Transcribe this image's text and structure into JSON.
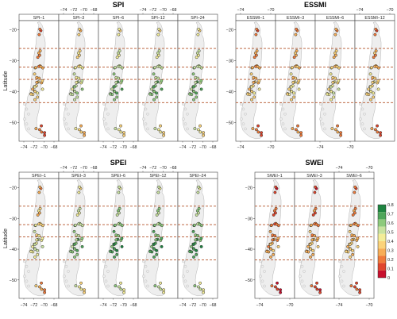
{
  "colors": {
    "dash": "#b4532a",
    "map_fill": "#eeeeee",
    "map_stroke": "#b5b5b5",
    "panel_border": "#444444",
    "strip_fill": "#ffffff",
    "point_stroke": "#222222",
    "colorbar": [
      "#c8102e",
      "#e0452c",
      "#f07a3a",
      "#f7ad56",
      "#fbd37a",
      "#f3ed98",
      "#c9e3a0",
      "#8dca7c",
      "#4ea65a",
      "#1e8440"
    ]
  },
  "chart_data": [
    {
      "type": "scatter",
      "title": "SPI",
      "ylabel": "Latitude",
      "panels": [
        "SPI–1",
        "SPI–3",
        "SPI–6",
        "SPI–12",
        "SPI–24"
      ],
      "panel_level": [
        0.3,
        0.45,
        0.55,
        0.55,
        0.55
      ],
      "x_ticks_bottom": [
        "−74",
        "−72",
        "−70",
        "−68"
      ],
      "x_ticks_top": [
        "−74",
        "−72",
        "−70",
        "−68"
      ],
      "top_tick_panels": [
        1,
        3
      ],
      "bottom_tick_panels": [
        0,
        2,
        4
      ],
      "y_ticks": [
        -20,
        -30,
        -40,
        -50
      ],
      "ylim": [
        -56,
        -17
      ],
      "dashed_lat": [
        -26,
        -32,
        -36,
        -43.5
      ],
      "region": "Chile"
    },
    {
      "type": "scatter",
      "title": "ESSMI",
      "ylabel": "",
      "panels": [
        "ESSMI–1",
        "ESSMI–3",
        "ESSMI–6",
        "ESSMI–12"
      ],
      "panel_level": [
        0.3,
        0.35,
        0.38,
        0.32
      ],
      "x_ticks_bottom": [
        "−74",
        "−70"
      ],
      "x_ticks_top": [
        "−74",
        "−70"
      ],
      "top_tick_panels": [
        0,
        3
      ],
      "bottom_tick_panels": [
        0,
        2
      ],
      "y_ticks": [
        -20,
        -30,
        -40,
        -50
      ],
      "ylim": [
        -56,
        -17
      ],
      "dashed_lat": [
        -26,
        -32,
        -36,
        -43.5
      ],
      "region": "Chile"
    },
    {
      "type": "scatter",
      "title": "SPEI",
      "ylabel": "Latitude",
      "panels": [
        "SPEI–1",
        "SPEI–3",
        "SPEI–6",
        "SPEI–12",
        "SPEI–24"
      ],
      "panel_level": [
        0.4,
        0.55,
        0.62,
        0.62,
        0.62
      ],
      "x_ticks_bottom": [
        "−74",
        "−72",
        "−70",
        "−68"
      ],
      "x_ticks_top": [
        "−74",
        "−72",
        "−70",
        "−68"
      ],
      "top_tick_panels": [
        1,
        3
      ],
      "bottom_tick_panels": [
        0,
        2,
        4
      ],
      "y_ticks": [
        -20,
        -30,
        -40,
        -50
      ],
      "ylim": [
        -56,
        -17
      ],
      "dashed_lat": [
        -26,
        -32,
        -36,
        -43.5
      ],
      "region": "Chile"
    },
    {
      "type": "scatter",
      "title": "SWEI",
      "ylabel": "",
      "panels": [
        "SWEI–1",
        "SWEI–3",
        "SWEI–6"
      ],
      "panel_level": [
        0.22,
        0.25,
        0.28
      ],
      "x_ticks_bottom": [
        "−74",
        "−70"
      ],
      "x_ticks_top": [
        "−74",
        "−70"
      ],
      "top_tick_panels": [
        2
      ],
      "bottom_tick_panels": [
        0,
        2
      ],
      "y_ticks": [
        -20,
        -30,
        -40,
        -50
      ],
      "ylim": [
        -56,
        -17
      ],
      "dashed_lat": [
        -26,
        -32,
        -36,
        -43.5
      ],
      "region": "Chile"
    }
  ],
  "colorbar": {
    "ticks": [
      "0.8",
      "0.7",
      "0.6",
      "0.5",
      "0.4",
      "0.3",
      "0.2",
      "0.1",
      "0"
    ],
    "range": [
      0,
      0.8
    ]
  }
}
